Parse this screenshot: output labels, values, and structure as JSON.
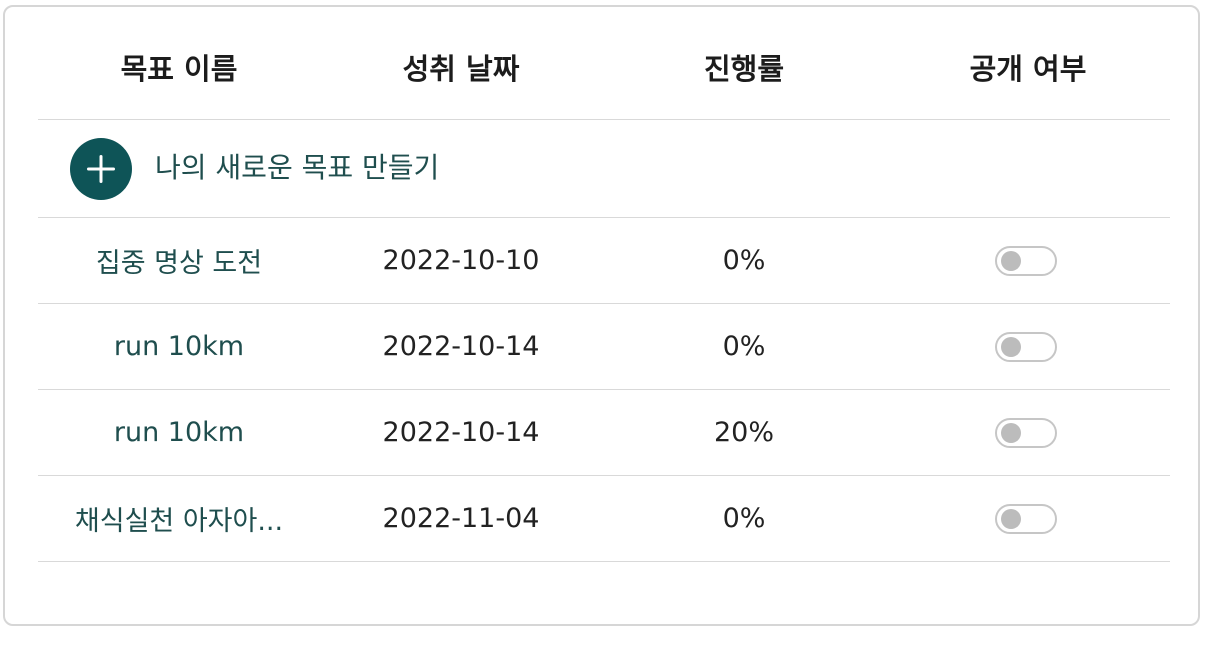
{
  "table": {
    "headers": {
      "name": "목표 이름",
      "date": "성취 날짜",
      "progress": "진행률",
      "public": "공개 여부"
    },
    "add_goal_label": "나의 새로운 목표 만들기",
    "rows": [
      {
        "name": "집중 명상 도전",
        "date": "2022-10-10",
        "progress": "0%",
        "public": false
      },
      {
        "name": "run 10km",
        "date": "2022-10-14",
        "progress": "0%",
        "public": false
      },
      {
        "name": "run 10km",
        "date": "2022-10-14",
        "progress": "20%",
        "public": false
      },
      {
        "name": "채식실천 아자아...",
        "date": "2022-11-04",
        "progress": "0%",
        "public": false
      }
    ]
  },
  "colors": {
    "accent": "#0e5457",
    "goal_text": "#1f4e4e",
    "toggle_off": "#bcbcbc"
  },
  "icons": {
    "add": "plus-icon",
    "toggle": "toggle-switch"
  }
}
